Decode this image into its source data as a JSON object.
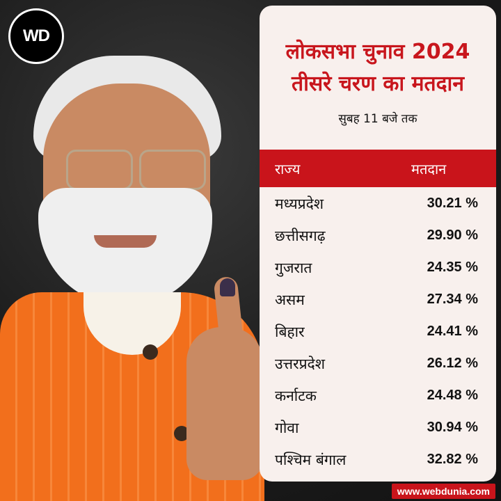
{
  "logo": {
    "text": "WD"
  },
  "card": {
    "title_line1": "लोकसभा चुनाव 2024",
    "title_line2": "तीसरे चरण का मतदान",
    "subtitle": "सुबह 11 बजे तक",
    "header": {
      "state": "राज्य",
      "turnout": "मतदान"
    },
    "rows": [
      {
        "state": "मध्यप्रदेश",
        "turnout": "30.21 %"
      },
      {
        "state": "छत्तीसगढ़",
        "turnout": "29.90 %"
      },
      {
        "state": "गुजरात",
        "turnout": "24.35 %"
      },
      {
        "state": "असम",
        "turnout": "27.34 %"
      },
      {
        "state": "बिहार",
        "turnout": "24.41 %"
      },
      {
        "state": "उत्तरप्रदेश",
        "turnout": "26.12 %"
      },
      {
        "state": "कर्नाटक",
        "turnout": "24.48 %"
      },
      {
        "state": "गोवा",
        "turnout": "30.94 %"
      },
      {
        "state": "पश्चिम बंगाल",
        "turnout": "32.82 %"
      }
    ]
  },
  "footer": {
    "url": "www.webdunia.com"
  },
  "colors": {
    "accent": "#c9141b",
    "card_bg": "#f8f0ed"
  }
}
